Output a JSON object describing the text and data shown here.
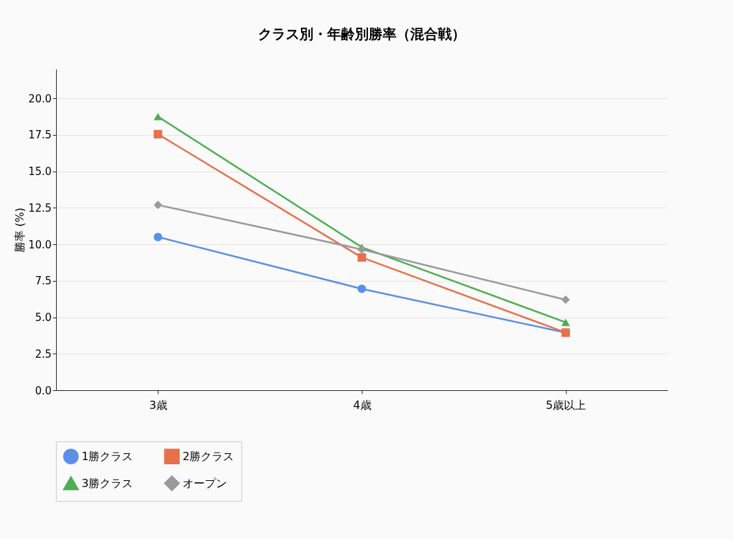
{
  "chart_data": {
    "type": "line",
    "title": "クラス別・年齢別勝率（混合戦）",
    "ylabel": "勝率 (%)",
    "categories": [
      "3歳",
      "4歳",
      "5歳以上"
    ],
    "series": [
      {
        "name": "1勝クラス",
        "color": "#5b8fe8",
        "marker": "circle",
        "values": [
          10.5,
          6.95,
          3.95
        ]
      },
      {
        "name": "2勝クラス",
        "color": "#e8704a",
        "marker": "square",
        "values": [
          17.55,
          9.1,
          3.95
        ]
      },
      {
        "name": "3勝クラス",
        "color": "#4caf50",
        "marker": "triangle",
        "values": [
          18.75,
          9.8,
          4.65
        ]
      },
      {
        "name": "オープン",
        "color": "#999999",
        "marker": "diamond",
        "values": [
          12.7,
          9.65,
          6.2
        ]
      }
    ],
    "ylim": [
      0,
      22
    ],
    "yticks": [
      {
        "value": 0,
        "label": "0.0"
      },
      2.5,
      {
        "value": 5,
        "label": "5.0"
      },
      7.5,
      {
        "value": 10,
        "label": "10.0"
      },
      12.5,
      {
        "value": 15,
        "label": "15.0"
      },
      17.5,
      {
        "value": 20,
        "label": "20.0"
      }
    ],
    "grid": "y",
    "legend": "bottom",
    "line_style": "solid"
  }
}
